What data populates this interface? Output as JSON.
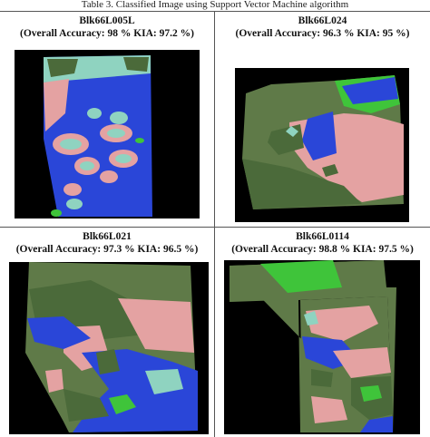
{
  "caption": "Table 3. Classified Image using Support Vector Machine algorithm",
  "panels": [
    {
      "title": "Blk66L005L",
      "subtitle": "(Overall Accuracy: 98 % KIA: 97.2 %)"
    },
    {
      "title": "Blk66L024",
      "subtitle": "(Overall Accuracy: 96.3 % KIA: 95 %)"
    },
    {
      "title": "Blk66L021",
      "subtitle": "(Overall Accuracy: 97.3 % KIA: 96.5 %)"
    },
    {
      "title": "Blk66L0114",
      "subtitle": "(Overall Accuracy: 98.8 % KIA: 97.5 %)"
    }
  ],
  "colors": {
    "water": "#2a46d8",
    "vegetation": "#4b6a3a",
    "built_up": "#e4a2a2",
    "grassland": "#3fc43a",
    "sand": "#8fd3c0",
    "background": "#000000"
  }
}
